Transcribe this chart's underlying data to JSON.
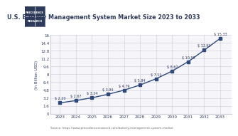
{
  "title": "U.S. Battery Management System Market Size 2023 to 2033",
  "ylabel": "(In Billion USD)",
  "source": "Source: https://www.precedenceresearch.com/battery-management-system-market",
  "years": [
    2023,
    2024,
    2025,
    2026,
    2027,
    2028,
    2029,
    2030,
    2031,
    2032,
    2033
  ],
  "values": [
    2.2,
    2.67,
    3.24,
    3.94,
    4.79,
    5.84,
    7.11,
    8.67,
    10.59,
    12.93,
    15.33
  ],
  "labels": [
    "$ 2.20",
    "$ 2.67",
    "$ 3.24",
    "$ 3.94",
    "$ 4.79",
    "$ 5.84",
    "$ 7.11",
    "$ 8.67",
    "$ 10.59",
    "$ 12.93",
    "$ 15.33"
  ],
  "line_color": "#2e4a7a",
  "marker_color": "#2e4a7a",
  "bg_color": "#ffffff",
  "plot_bg_color": "#f5f5fa",
  "grid_color": "#ccccdd",
  "title_color": "#2e3a5a",
  "label_color": "#2e3a5a",
  "axis_color": "#2e3a5a",
  "source_color": "#666666",
  "ylim": [
    0,
    16
  ],
  "yticks": [
    0,
    1.6,
    3.2,
    4.8,
    6.4,
    8.0,
    9.6,
    11.2,
    12.8,
    14.4,
    16
  ],
  "logo_color": "#2e3a5a",
  "logo_border_color": "#2e3a5a"
}
